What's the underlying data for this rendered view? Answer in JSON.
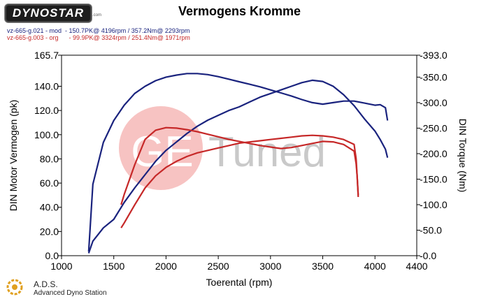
{
  "header": {
    "logo_text": "DYNOSTAR",
    "logo_sub": ".com",
    "title": "Vermogens Kromme"
  },
  "legend": {
    "run1": "vz-665-g.021 - mod  - 150.7PK@ 4196rpm / 357.2Nm@ 2293rpm",
    "run2": "vz-665-g.003 - org      - 99.9PK@ 3324rpm / 251.4Nm@ 1971rpm"
  },
  "watermark": {
    "text_left": "GE",
    "text_right": "Tuned"
  },
  "footer": {
    "title": "A.D.S.",
    "subtitle": "Advanced Dyno Station"
  },
  "colors": {
    "mod": "#1a237e",
    "org": "#c62828",
    "axis": "#000000",
    "watermark_red": "#e53935",
    "watermark_grey": "#9e9e9e"
  },
  "chart_data": {
    "type": "line",
    "title": "Vermogens Kromme",
    "xlabel": "Toerental (rpm)",
    "ylabel": "DIN Motor Vermogen (pk)",
    "y2label": "DIN Torque (Nm)",
    "xlim": [
      1000,
      4400
    ],
    "ylim": [
      0,
      165.7
    ],
    "y2lim": [
      0,
      393.0
    ],
    "x_ticks": [
      "1000",
      "1500",
      "2000",
      "2500",
      "3000",
      "3500",
      "4000",
      "4400"
    ],
    "y_ticks": [
      "0.0",
      "20.0",
      "40.0",
      "60.0",
      "80.0",
      "100.0",
      "120.0",
      "140.0",
      "165.7"
    ],
    "y_tick_values": [
      0,
      20,
      40,
      60,
      80,
      100,
      120,
      140,
      165.7
    ],
    "y2_ticks": [
      "-0.0",
      "-50.0",
      "-100.0",
      "-150.0",
      "-200.0",
      "-250.0",
      "-300.0",
      "-350.0",
      "-393.0"
    ],
    "y2_tick_values": [
      0,
      50,
      100,
      150,
      200,
      250,
      300,
      350,
      393
    ],
    "grid": false,
    "series": [
      {
        "name": "mod power (pk)",
        "axis": "left",
        "color": "#1a237e",
        "x": [
          1260,
          1300,
          1400,
          1500,
          1600,
          1700,
          1800,
          1900,
          2000,
          2100,
          2200,
          2300,
          2400,
          2500,
          2600,
          2700,
          2800,
          2900,
          3000,
          3100,
          3200,
          3300,
          3400,
          3500,
          3600,
          3700,
          3800,
          3900,
          4000,
          4050,
          4100,
          4120
        ],
        "y": [
          2,
          12,
          23,
          30,
          44,
          56,
          67,
          78,
          87,
          94,
          101,
          107,
          112,
          116,
          120,
          123,
          127,
          131,
          134,
          137,
          140,
          143,
          145,
          144,
          140,
          133,
          124,
          113,
          103,
          96,
          88,
          81
        ]
      },
      {
        "name": "mod torque (Nm)",
        "axis": "right",
        "color": "#1a237e",
        "x": [
          1260,
          1300,
          1400,
          1500,
          1600,
          1700,
          1800,
          1900,
          2000,
          2100,
          2200,
          2300,
          2400,
          2500,
          2600,
          2700,
          2800,
          2900,
          3000,
          3100,
          3200,
          3300,
          3400,
          3500,
          3600,
          3700,
          3800,
          3900,
          4000,
          4050,
          4100,
          4120
        ],
        "y": [
          8,
          140,
          222,
          265,
          295,
          318,
          332,
          343,
          350,
          354,
          357,
          357,
          355,
          351,
          346,
          341,
          336,
          331,
          325,
          319,
          313,
          306,
          300,
          297,
          300,
          303,
          303,
          299,
          295,
          296,
          290,
          265
        ]
      },
      {
        "name": "org power (pk)",
        "axis": "left",
        "color": "#c62828",
        "x": [
          1570,
          1600,
          1700,
          1800,
          1900,
          2000,
          2100,
          2200,
          2300,
          2400,
          2500,
          2600,
          2700,
          2800,
          2900,
          3000,
          3100,
          3200,
          3300,
          3400,
          3500,
          3600,
          3700,
          3800,
          3820,
          3830,
          3840
        ],
        "y": [
          23,
          27,
          42,
          56,
          66,
          73,
          78,
          82,
          85,
          87,
          89,
          91,
          93,
          94,
          95,
          96,
          97,
          98,
          99,
          99.5,
          99,
          98,
          96,
          92,
          80,
          65,
          50
        ]
      },
      {
        "name": "org torque (Nm)",
        "axis": "right",
        "color": "#c62828",
        "x": [
          1570,
          1600,
          1700,
          1800,
          1900,
          2000,
          2100,
          2200,
          2300,
          2400,
          2500,
          2600,
          2700,
          2800,
          2900,
          3000,
          3100,
          3200,
          3300,
          3400,
          3500,
          3600,
          3700,
          3800,
          3820,
          3830,
          3840
        ],
        "y": [
          100,
          120,
          178,
          228,
          246,
          251,
          250,
          247,
          243,
          238,
          233,
          228,
          224,
          220,
          216,
          213,
          210,
          212,
          216,
          220,
          224,
          223,
          218,
          205,
          180,
          155,
          115
        ]
      }
    ]
  }
}
